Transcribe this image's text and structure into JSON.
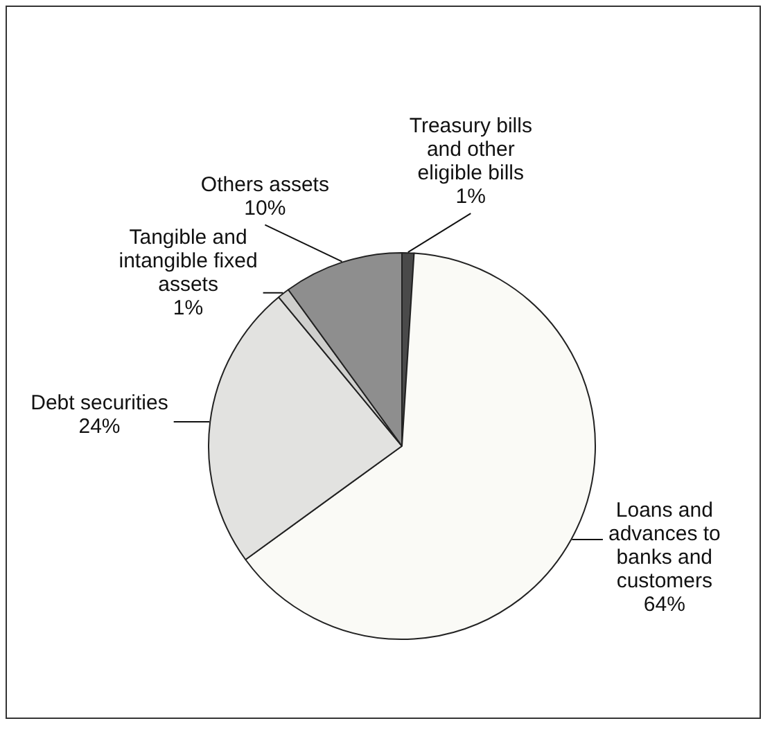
{
  "chart_data": {
    "type": "pie",
    "categories": [
      "Treasury bills and other eligible bills",
      "Loans and advances to banks and customers",
      "Debt securities",
      "Tangible and intangible fixed assets",
      "Others assets"
    ],
    "values": [
      1,
      64,
      24,
      1,
      10
    ],
    "colors": [
      "#4a4a4a",
      "#fafaf6",
      "#e2e2e0",
      "#cfcfcd",
      "#8e8e8e"
    ],
    "value_labels": [
      "1%",
      "64%",
      "24%",
      "1%",
      "10%"
    ],
    "legend": false
  }
}
